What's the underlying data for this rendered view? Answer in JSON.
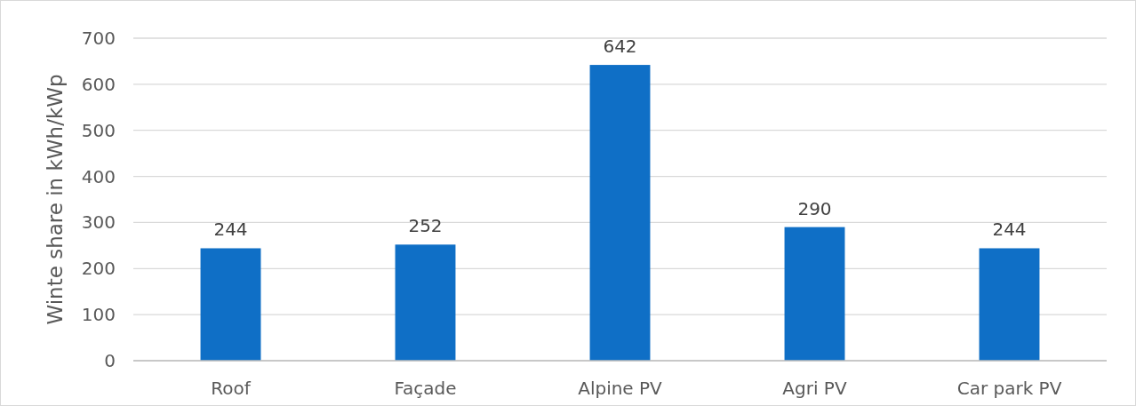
{
  "chart_data": {
    "type": "bar",
    "ylabel": "Winte share in kWh/kWp",
    "categories": [
      "Roof",
      "Façade",
      "Alpine PV",
      "Agri PV",
      "Car park PV"
    ],
    "values": [
      244,
      252,
      642,
      290,
      244
    ],
    "color": "#0f6fc6",
    "ylim": [
      0,
      700
    ],
    "yticks": [
      0,
      100,
      200,
      300,
      400,
      500,
      600,
      700
    ],
    "grid": "y",
    "data_labels": true
  }
}
